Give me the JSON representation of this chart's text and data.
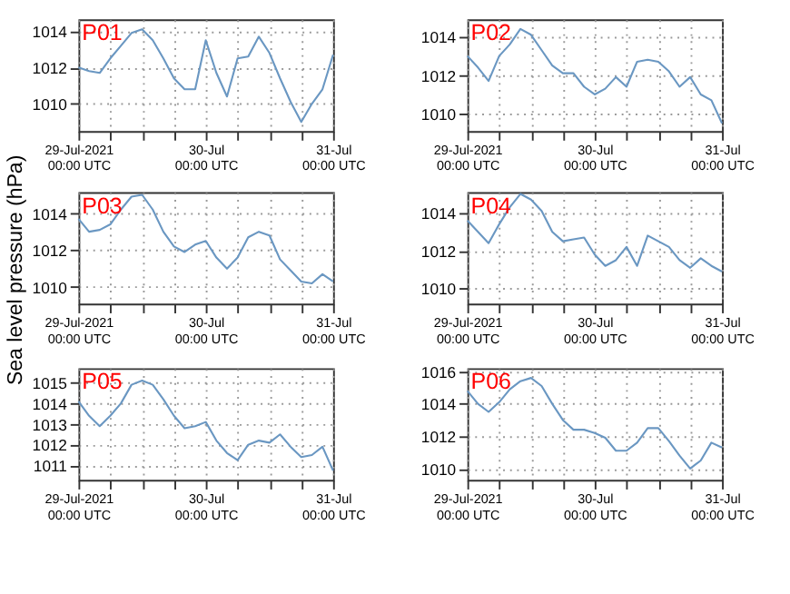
{
  "chart_data": [
    {
      "type": "line",
      "title": "P01",
      "x": [
        "2021-07-29T00:00",
        "2021-07-29T02:00",
        "2021-07-29T04:00",
        "2021-07-29T06:00",
        "2021-07-29T08:00",
        "2021-07-29T10:00",
        "2021-07-29T12:00",
        "2021-07-29T14:00",
        "2021-07-29T16:00",
        "2021-07-29T18:00",
        "2021-07-29T20:00",
        "2021-07-29T22:00",
        "2021-07-30T00:00",
        "2021-07-30T02:00",
        "2021-07-30T04:00",
        "2021-07-30T06:00",
        "2021-07-30T08:00",
        "2021-07-30T10:00",
        "2021-07-30T12:00",
        "2021-07-30T14:00",
        "2021-07-30T16:00",
        "2021-07-30T18:00",
        "2021-07-30T20:00",
        "2021-07-30T22:00",
        "2021-07-31T00:00"
      ],
      "series": [
        {
          "color": "#6a97c2",
          "values": [
            1012.0,
            1011.8,
            1011.7,
            1012.5,
            1013.2,
            1013.9,
            1014.1,
            1013.5,
            1012.5,
            1011.4,
            1010.8,
            1010.8,
            1013.5,
            1011.7,
            1010.4,
            1012.5,
            1012.6,
            1013.7,
            1012.8,
            1011.4,
            1010.1,
            1009.0,
            1010.0,
            1010.8,
            1012.7
          ]
        }
      ],
      "xlim": [
        "2021-07-29T00:00",
        "2021-07-31T00:00"
      ],
      "xticks": [
        {
          "value": "2021-07-29T00:00",
          "label": "29-Jul-2021\n00:00 UTC"
        },
        {
          "value": "2021-07-29T06:00",
          "label": null
        },
        {
          "value": "2021-07-29T12:00",
          "label": null
        },
        {
          "value": "2021-07-29T18:00",
          "label": null
        },
        {
          "value": "2021-07-30T00:00",
          "label": "30-Jul\n00:00 UTC"
        },
        {
          "value": "2021-07-30T06:00",
          "label": null
        },
        {
          "value": "2021-07-30T12:00",
          "label": null
        },
        {
          "value": "2021-07-30T18:00",
          "label": null
        },
        {
          "value": "2021-07-31T00:00",
          "label": "31-Jul\n00:00 UTC"
        }
      ],
      "ylim": [
        1008.5,
        1014.65
      ],
      "yticks": [
        1010,
        1012,
        1014
      ],
      "grid": true
    },
    {
      "type": "line",
      "title": "P02",
      "x": [
        "2021-07-29T00:00",
        "2021-07-29T02:00",
        "2021-07-29T04:00",
        "2021-07-29T06:00",
        "2021-07-29T08:00",
        "2021-07-29T10:00",
        "2021-07-29T12:00",
        "2021-07-29T14:00",
        "2021-07-29T16:00",
        "2021-07-29T18:00",
        "2021-07-29T20:00",
        "2021-07-29T22:00",
        "2021-07-30T00:00",
        "2021-07-30T02:00",
        "2021-07-30T04:00",
        "2021-07-30T06:00",
        "2021-07-30T08:00",
        "2021-07-30T10:00",
        "2021-07-30T12:00",
        "2021-07-30T14:00",
        "2021-07-30T16:00",
        "2021-07-30T18:00",
        "2021-07-30T20:00",
        "2021-07-30T22:00",
        "2021-07-31T00:00"
      ],
      "series": [
        {
          "color": "#6a97c2",
          "values": [
            1013.0,
            1012.4,
            1011.7,
            1013.0,
            1013.6,
            1014.4,
            1014.1,
            1013.3,
            1012.5,
            1012.1,
            1012.1,
            1011.4,
            1011.0,
            1011.3,
            1011.9,
            1011.4,
            1012.7,
            1012.8,
            1012.7,
            1012.2,
            1011.4,
            1011.9,
            1011.0,
            1010.7,
            1009.5
          ]
        }
      ],
      "xlim": [
        "2021-07-29T00:00",
        "2021-07-31T00:00"
      ],
      "xticks": [
        {
          "value": "2021-07-29T00:00",
          "label": "29-Jul-2021\n00:00 UTC"
        },
        {
          "value": "2021-07-29T06:00",
          "label": null
        },
        {
          "value": "2021-07-29T12:00",
          "label": null
        },
        {
          "value": "2021-07-29T18:00",
          "label": null
        },
        {
          "value": "2021-07-30T00:00",
          "label": "30-Jul\n00:00 UTC"
        },
        {
          "value": "2021-07-30T06:00",
          "label": null
        },
        {
          "value": "2021-07-30T12:00",
          "label": null
        },
        {
          "value": "2021-07-30T18:00",
          "label": null
        },
        {
          "value": "2021-07-31T00:00",
          "label": "31-Jul\n00:00 UTC"
        }
      ],
      "ylim": [
        1009.1,
        1014.9
      ],
      "yticks": [
        1010,
        1012,
        1014
      ],
      "grid": true
    },
    {
      "type": "line",
      "title": "P03",
      "ylabel": "Sea level pressure (hPa)",
      "x": [
        "2021-07-29T00:00",
        "2021-07-29T02:00",
        "2021-07-29T04:00",
        "2021-07-29T06:00",
        "2021-07-29T08:00",
        "2021-07-29T10:00",
        "2021-07-29T12:00",
        "2021-07-29T14:00",
        "2021-07-29T16:00",
        "2021-07-29T18:00",
        "2021-07-29T20:00",
        "2021-07-29T22:00",
        "2021-07-30T00:00",
        "2021-07-30T02:00",
        "2021-07-30T04:00",
        "2021-07-30T06:00",
        "2021-07-30T08:00",
        "2021-07-30T10:00",
        "2021-07-30T12:00",
        "2021-07-30T14:00",
        "2021-07-30T16:00",
        "2021-07-30T18:00",
        "2021-07-30T20:00",
        "2021-07-30T22:00",
        "2021-07-31T00:00"
      ],
      "series": [
        {
          "color": "#6a97c2",
          "values": [
            1013.7,
            1013.0,
            1013.1,
            1013.4,
            1014.2,
            1014.9,
            1015.0,
            1014.2,
            1013.0,
            1012.2,
            1011.9,
            1012.3,
            1012.5,
            1011.6,
            1011.0,
            1011.6,
            1012.7,
            1013.0,
            1012.8,
            1011.5,
            1010.9,
            1010.3,
            1010.2,
            1010.7,
            1010.3
          ]
        }
      ],
      "xlim": [
        "2021-07-29T00:00",
        "2021-07-31T00:00"
      ],
      "xticks": [
        {
          "value": "2021-07-29T00:00",
          "label": "29-Jul-2021\n00:00 UTC"
        },
        {
          "value": "2021-07-29T06:00",
          "label": null
        },
        {
          "value": "2021-07-29T12:00",
          "label": null
        },
        {
          "value": "2021-07-29T18:00",
          "label": null
        },
        {
          "value": "2021-07-30T00:00",
          "label": "30-Jul\n00:00 UTC"
        },
        {
          "value": "2021-07-30T06:00",
          "label": null
        },
        {
          "value": "2021-07-30T12:00",
          "label": null
        },
        {
          "value": "2021-07-30T18:00",
          "label": null
        },
        {
          "value": "2021-07-31T00:00",
          "label": "31-Jul\n00:00 UTC"
        }
      ],
      "ylim": [
        1009.1,
        1015.15
      ],
      "yticks": [
        1010,
        1012,
        1014
      ],
      "grid": true
    },
    {
      "type": "line",
      "title": "P04",
      "x": [
        "2021-07-29T00:00",
        "2021-07-29T02:00",
        "2021-07-29T04:00",
        "2021-07-29T06:00",
        "2021-07-29T08:00",
        "2021-07-29T10:00",
        "2021-07-29T12:00",
        "2021-07-29T14:00",
        "2021-07-29T16:00",
        "2021-07-29T18:00",
        "2021-07-29T20:00",
        "2021-07-29T22:00",
        "2021-07-30T00:00",
        "2021-07-30T02:00",
        "2021-07-30T04:00",
        "2021-07-30T06:00",
        "2021-07-30T08:00",
        "2021-07-30T10:00",
        "2021-07-30T12:00",
        "2021-07-30T14:00",
        "2021-07-30T16:00",
        "2021-07-30T18:00",
        "2021-07-30T20:00",
        "2021-07-30T22:00",
        "2021-07-31T00:00"
      ],
      "series": [
        {
          "color": "#6a97c2",
          "values": [
            1013.6,
            1013.0,
            1012.4,
            1013.4,
            1014.3,
            1015.0,
            1014.7,
            1014.1,
            1013.0,
            1012.5,
            1012.6,
            1012.7,
            1011.8,
            1011.2,
            1011.5,
            1012.2,
            1011.2,
            1012.8,
            1012.5,
            1012.2,
            1011.5,
            1011.1,
            1011.6,
            1011.2,
            1010.9
          ]
        }
      ],
      "xlim": [
        "2021-07-29T00:00",
        "2021-07-31T00:00"
      ],
      "xticks": [
        {
          "value": "2021-07-29T00:00",
          "label": "29-Jul-2021\n00:00 UTC"
        },
        {
          "value": "2021-07-29T06:00",
          "label": null
        },
        {
          "value": "2021-07-29T12:00",
          "label": null
        },
        {
          "value": "2021-07-29T18:00",
          "label": null
        },
        {
          "value": "2021-07-30T00:00",
          "label": "30-Jul\n00:00 UTC"
        },
        {
          "value": "2021-07-30T06:00",
          "label": null
        },
        {
          "value": "2021-07-30T12:00",
          "label": null
        },
        {
          "value": "2021-07-30T18:00",
          "label": null
        },
        {
          "value": "2021-07-31T00:00",
          "label": "31-Jul\n00:00 UTC"
        }
      ],
      "ylim": [
        1009.2,
        1015.1
      ],
      "yticks": [
        1010,
        1012,
        1014
      ],
      "grid": true
    },
    {
      "type": "line",
      "title": "P05",
      "x": [
        "2021-07-29T00:00",
        "2021-07-29T02:00",
        "2021-07-29T04:00",
        "2021-07-29T06:00",
        "2021-07-29T08:00",
        "2021-07-29T10:00",
        "2021-07-29T12:00",
        "2021-07-29T14:00",
        "2021-07-29T16:00",
        "2021-07-29T18:00",
        "2021-07-29T20:00",
        "2021-07-29T22:00",
        "2021-07-30T00:00",
        "2021-07-30T02:00",
        "2021-07-30T04:00",
        "2021-07-30T06:00",
        "2021-07-30T08:00",
        "2021-07-30T10:00",
        "2021-07-30T12:00",
        "2021-07-30T14:00",
        "2021-07-30T16:00",
        "2021-07-30T18:00",
        "2021-07-30T20:00",
        "2021-07-30T22:00",
        "2021-07-31T00:00"
      ],
      "series": [
        {
          "color": "#6a97c2",
          "values": [
            1014.1,
            1013.4,
            1012.9,
            1013.4,
            1014.0,
            1014.9,
            1015.1,
            1014.9,
            1014.2,
            1013.4,
            1012.8,
            1012.9,
            1013.1,
            1012.2,
            1011.6,
            1011.25,
            1012.0,
            1012.2,
            1012.1,
            1012.5,
            1011.9,
            1011.4,
            1011.5,
            1011.9,
            1010.75
          ]
        }
      ],
      "xlim": [
        "2021-07-29T00:00",
        "2021-07-31T00:00"
      ],
      "xticks": [
        {
          "value": "2021-07-29T00:00",
          "label": "29-Jul-2021\n00:00 UTC"
        },
        {
          "value": "2021-07-29T06:00",
          "label": null
        },
        {
          "value": "2021-07-29T12:00",
          "label": null
        },
        {
          "value": "2021-07-29T18:00",
          "label": null
        },
        {
          "value": "2021-07-30T00:00",
          "label": "30-Jul\n00:00 UTC"
        },
        {
          "value": "2021-07-30T06:00",
          "label": null
        },
        {
          "value": "2021-07-30T12:00",
          "label": null
        },
        {
          "value": "2021-07-30T18:00",
          "label": null
        },
        {
          "value": "2021-07-31T00:00",
          "label": "31-Jul\n00:00 UTC"
        }
      ],
      "ylim": [
        1010.3,
        1015.7
      ],
      "yticks": [
        1011,
        1012,
        1013,
        1014,
        1015
      ],
      "grid": true
    },
    {
      "type": "line",
      "title": "P06",
      "x": [
        "2021-07-29T00:00",
        "2021-07-29T02:00",
        "2021-07-29T04:00",
        "2021-07-29T06:00",
        "2021-07-29T08:00",
        "2021-07-29T10:00",
        "2021-07-29T12:00",
        "2021-07-29T14:00",
        "2021-07-29T16:00",
        "2021-07-29T18:00",
        "2021-07-29T20:00",
        "2021-07-29T22:00",
        "2021-07-30T00:00",
        "2021-07-30T02:00",
        "2021-07-30T04:00",
        "2021-07-30T06:00",
        "2021-07-30T08:00",
        "2021-07-30T10:00",
        "2021-07-30T12:00",
        "2021-07-30T14:00",
        "2021-07-30T16:00",
        "2021-07-30T18:00",
        "2021-07-30T20:00",
        "2021-07-30T22:00",
        "2021-07-31T00:00"
      ],
      "series": [
        {
          "color": "#6a97c2",
          "values": [
            1014.8,
            1014.0,
            1013.5,
            1014.1,
            1014.9,
            1015.4,
            1015.6,
            1015.1,
            1014.0,
            1013.0,
            1012.4,
            1012.4,
            1012.2,
            1011.9,
            1011.1,
            1011.1,
            1011.6,
            1012.5,
            1012.5,
            1011.7,
            1010.8,
            1010.0,
            1010.5,
            1011.6,
            1011.3
          ]
        }
      ],
      "xlim": [
        "2021-07-29T00:00",
        "2021-07-31T00:00"
      ],
      "xticks": [
        {
          "value": "2021-07-29T00:00",
          "label": "29-Jul-2021\n00:00 UTC"
        },
        {
          "value": "2021-07-29T06:00",
          "label": null
        },
        {
          "value": "2021-07-29T12:00",
          "label": null
        },
        {
          "value": "2021-07-29T18:00",
          "label": null
        },
        {
          "value": "2021-07-30T00:00",
          "label": "30-Jul\n00:00 UTC"
        },
        {
          "value": "2021-07-30T06:00",
          "label": null
        },
        {
          "value": "2021-07-30T12:00",
          "label": null
        },
        {
          "value": "2021-07-30T18:00",
          "label": null
        },
        {
          "value": "2021-07-31T00:00",
          "label": "31-Jul\n00:00 UTC"
        }
      ],
      "ylim": [
        1009.3,
        1016.2
      ],
      "yticks": [
        1010,
        1012,
        1014,
        1016
      ],
      "grid": true
    }
  ]
}
